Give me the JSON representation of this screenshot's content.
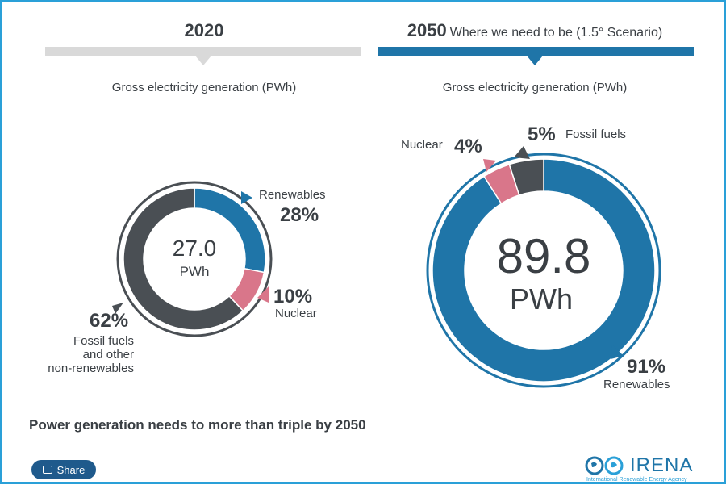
{
  "panel_2020": {
    "year": "2020",
    "subtitle": "Gross electricity generation (PWh)",
    "total_value": "27.0",
    "total_unit": "PWh"
  },
  "panel_2050": {
    "year": "2050",
    "scenario": "Where we need to be (1.5° Scenario)",
    "subtitle": "Gross electricity generation (PWh)",
    "total_value": "89.8",
    "total_unit": "PWh"
  },
  "footer_text": "Power generation needs to more than triple by 2050",
  "share_label": "Share",
  "logo": {
    "name": "IRENA",
    "tagline": "International Renewable Energy Agency"
  },
  "colors": {
    "renewables": "#1f75a8",
    "nuclear": "#d9768a",
    "fossil": "#4a4f54",
    "accent": "#2aa0d8"
  },
  "chart_data": [
    {
      "type": "pie",
      "title": "2020",
      "total": 27.0,
      "unit": "PWh",
      "slices": [
        {
          "name": "Renewables",
          "value": 28,
          "pct_label": "28%"
        },
        {
          "name": "Nuclear",
          "value": 10,
          "pct_label": "10%"
        },
        {
          "name": "Fossil fuels and other non-renewables",
          "value": 62,
          "pct_label": "62%",
          "label_lines": [
            "Fossil fuels",
            "and other",
            "non-renewables"
          ]
        }
      ]
    },
    {
      "type": "pie",
      "title": "2050",
      "total": 89.8,
      "unit": "PWh",
      "slices": [
        {
          "name": "Renewables",
          "value": 91,
          "pct_label": "91%"
        },
        {
          "name": "Nuclear",
          "value": 4,
          "pct_label": "4%"
        },
        {
          "name": "Fossil fuels",
          "value": 5,
          "pct_label": "5%"
        }
      ]
    }
  ]
}
